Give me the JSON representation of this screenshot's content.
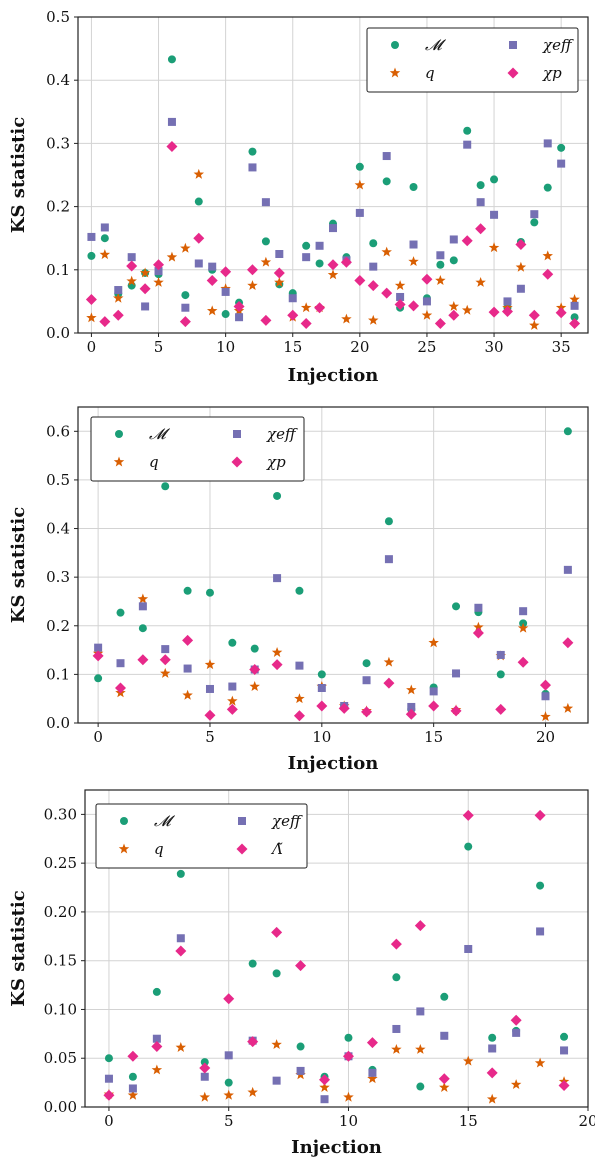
{
  "colors": {
    "M": "#1b9e77",
    "q": "#d95f02",
    "chi_eff": "#7570b3",
    "chi_p": "#e7298a"
  },
  "chart_data": [
    {
      "type": "scatter",
      "xlabel": "Injection",
      "ylabel": "KS statistic",
      "xlim": [
        -1,
        37
      ],
      "ylim": [
        0,
        0.5
      ],
      "xticks": [
        0,
        5,
        10,
        15,
        20,
        25,
        30,
        35
      ],
      "yticks": [
        0.0,
        0.1,
        0.2,
        0.3,
        0.4,
        0.5
      ],
      "ytick_labels": [
        "0.0",
        "0.1",
        "0.2",
        "0.3",
        "0.4",
        "0.5"
      ],
      "grid": true,
      "legend_placement": "top-right",
      "series": [
        {
          "name": "𝓜",
          "marker": "circle",
          "color_key": "M",
          "values": [
            0.122,
            0.15,
            0.062,
            0.075,
            0.095,
            0.093,
            0.433,
            0.06,
            0.208,
            0.1,
            0.03,
            0.048,
            0.287,
            0.145,
            0.077,
            0.063,
            0.138,
            0.11,
            0.173,
            0.12,
            0.263,
            0.142,
            0.24,
            0.04,
            0.231,
            0.055,
            0.108,
            0.115,
            0.32,
            0.234,
            0.243,
            0.04,
            0.144,
            0.175,
            0.23,
            0.293,
            0.025
          ]
        },
        {
          "name": "q",
          "marker": "star",
          "color_key": "q",
          "values": [
            0.024,
            0.124,
            0.055,
            0.082,
            0.095,
            0.08,
            0.12,
            0.134,
            0.251,
            0.035,
            0.07,
            0.035,
            0.075,
            0.112,
            0.08,
            0.025,
            0.04,
            0.04,
            0.092,
            0.022,
            0.234,
            0.02,
            0.128,
            0.075,
            0.113,
            0.028,
            0.083,
            0.042,
            0.036,
            0.08,
            0.135,
            0.04,
            0.104,
            0.012,
            0.122,
            0.04,
            0.053
          ]
        },
        {
          "name": "χeff",
          "marker": "square",
          "color_key": "chi_eff",
          "values": [
            0.152,
            0.167,
            0.068,
            0.12,
            0.042,
            0.098,
            0.334,
            0.04,
            0.11,
            0.105,
            0.065,
            0.025,
            0.262,
            0.207,
            0.125,
            0.055,
            0.12,
            0.138,
            0.166,
            0.115,
            0.19,
            0.105,
            0.28,
            0.057,
            0.14,
            0.05,
            0.123,
            0.148,
            0.298,
            0.207,
            0.187,
            0.05,
            0.07,
            0.188,
            0.3,
            0.268,
            0.043
          ]
        },
        {
          "name": "χp",
          "marker": "diamond",
          "color_key": "chi_p",
          "values": [
            0.053,
            0.018,
            0.028,
            0.106,
            0.07,
            0.108,
            0.295,
            0.018,
            0.15,
            0.083,
            0.097,
            0.042,
            0.1,
            0.02,
            0.095,
            0.028,
            0.015,
            0.04,
            0.108,
            0.112,
            0.083,
            0.075,
            0.063,
            0.045,
            0.043,
            0.085,
            0.015,
            0.028,
            0.146,
            0.165,
            0.033,
            0.034,
            0.14,
            0.028,
            0.093,
            0.032,
            0.015
          ]
        }
      ]
    },
    {
      "type": "scatter",
      "xlabel": "Injection",
      "ylabel": "KS statistic",
      "xlim": [
        -0.9,
        21.9
      ],
      "ylim": [
        0,
        0.65
      ],
      "xticks": [
        0,
        5,
        10,
        15,
        20
      ],
      "yticks": [
        0.0,
        0.1,
        0.2,
        0.3,
        0.4,
        0.5,
        0.6
      ],
      "ytick_labels": [
        "0.0",
        "0.1",
        "0.2",
        "0.3",
        "0.4",
        "0.5",
        "0.6"
      ],
      "grid": true,
      "legend_placement": "top-left",
      "series": [
        {
          "name": "𝓜",
          "marker": "circle",
          "color_key": "M",
          "values": [
            0.092,
            0.227,
            0.195,
            0.487,
            0.272,
            0.268,
            0.165,
            0.153,
            0.467,
            0.272,
            0.1,
            0.035,
            0.123,
            0.415,
            0.028,
            0.073,
            0.24,
            0.228,
            0.1,
            0.205,
            0.06,
            0.6
          ]
        },
        {
          "name": "q",
          "marker": "star",
          "color_key": "q",
          "values": [
            0.143,
            0.062,
            0.255,
            0.102,
            0.057,
            0.12,
            0.045,
            0.075,
            0.145,
            0.05,
            0.075,
            0.035,
            0.025,
            0.125,
            0.068,
            0.165,
            0.027,
            0.197,
            0.138,
            0.195,
            0.013,
            0.03
          ]
        },
        {
          "name": "χeff",
          "marker": "square",
          "color_key": "chi_eff",
          "values": [
            0.155,
            0.123,
            0.24,
            0.152,
            0.112,
            0.07,
            0.075,
            0.11,
            0.298,
            0.118,
            0.072,
            0.035,
            0.088,
            0.337,
            0.033,
            0.065,
            0.102,
            0.237,
            0.14,
            0.23,
            0.055,
            0.315
          ]
        },
        {
          "name": "χp",
          "marker": "diamond",
          "color_key": "chi_p",
          "values": [
            0.138,
            0.072,
            0.13,
            0.13,
            0.17,
            0.016,
            0.028,
            0.11,
            0.12,
            0.015,
            0.035,
            0.03,
            0.023,
            0.082,
            0.018,
            0.035,
            0.025,
            0.185,
            0.028,
            0.125,
            0.078,
            0.165
          ]
        }
      ]
    },
    {
      "type": "scatter",
      "xlabel": "Injection",
      "ylabel": "KS statistic",
      "xlim": [
        -1,
        20
      ],
      "ylim": [
        0,
        0.325
      ],
      "xticks": [
        0,
        5,
        10,
        15,
        20
      ],
      "yticks": [
        0.0,
        0.05,
        0.1,
        0.15,
        0.2,
        0.25,
        0.3
      ],
      "ytick_labels": [
        "0.00",
        "0.05",
        "0.10",
        "0.15",
        "0.20",
        "0.25",
        "0.30"
      ],
      "grid": true,
      "legend_placement": "top-left",
      "series": [
        {
          "name": "𝓜",
          "marker": "circle",
          "color_key": "M",
          "values": [
            0.05,
            0.031,
            0.118,
            0.239,
            0.046,
            0.025,
            0.147,
            0.137,
            0.062,
            0.031,
            0.071,
            0.038,
            0.133,
            0.021,
            0.113,
            0.267,
            0.071,
            0.078,
            0.227,
            0.072
          ]
        },
        {
          "name": "q",
          "marker": "star",
          "color_key": "q",
          "values": [
            0.013,
            0.012,
            0.038,
            0.061,
            0.01,
            0.012,
            0.015,
            0.064,
            0.033,
            0.02,
            0.01,
            0.029,
            0.059,
            0.059,
            0.02,
            0.047,
            0.008,
            0.023,
            0.045,
            0.026
          ]
        },
        {
          "name": "χeff",
          "marker": "square",
          "color_key": "chi_eff",
          "values": [
            0.029,
            0.019,
            0.07,
            0.173,
            0.031,
            0.053,
            0.068,
            0.027,
            0.037,
            0.008,
            0.052,
            0.035,
            0.08,
            0.098,
            0.073,
            0.162,
            0.06,
            0.076,
            0.18,
            0.058
          ]
        },
        {
          "name": "Λ̃",
          "marker": "diamond",
          "color_key": "chi_p",
          "values": [
            0.012,
            0.052,
            0.062,
            0.16,
            0.04,
            0.111,
            0.067,
            0.179,
            0.145,
            0.028,
            0.052,
            0.066,
            0.167,
            0.186,
            0.029,
            0.299,
            0.035,
            0.089,
            0.299,
            0.022
          ]
        }
      ]
    }
  ]
}
